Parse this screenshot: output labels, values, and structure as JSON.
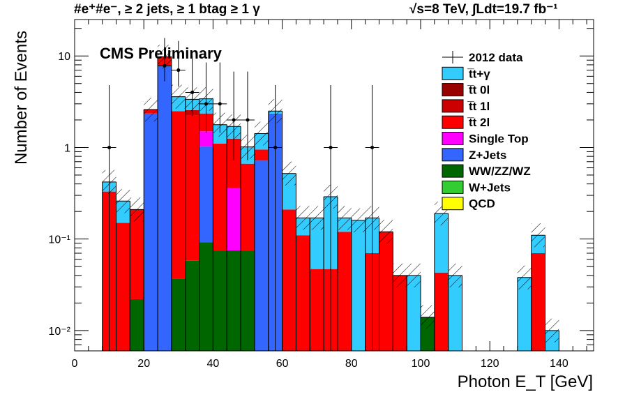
{
  "header": {
    "left": "#e⁺#e⁻, ≥ 2 jets, ≥ 1 btag ≥ 1 γ",
    "right": "√s=8 TeV,  ∫Ldt=19.7 fb⁻¹"
  },
  "chart_data": {
    "type": "bar",
    "stacked": true,
    "annotation": "CMS Preliminary",
    "xlabel": "Photon E_T [GeV]",
    "ylabel": "Number of Events",
    "xlim": [
      0,
      150
    ],
    "ylim": [
      0.006,
      25
    ],
    "yscale": "log",
    "x_ticks": [
      0,
      20,
      40,
      60,
      80,
      100,
      120,
      140
    ],
    "y_ticks": [
      {
        "value": 0.01,
        "label": "10⁻²"
      },
      {
        "value": 0.1,
        "label": "10⁻¹"
      },
      {
        "value": 1,
        "label": "1"
      },
      {
        "value": 10,
        "label": "10"
      }
    ],
    "legend_position": "top-right",
    "legend": [
      {
        "label": "2012 data",
        "style": "marker"
      },
      {
        "label": "t̅t+γ",
        "color": "#33ccff"
      },
      {
        "label": "t̅t 0l",
        "color": "#990000"
      },
      {
        "label": "t̅t 1l",
        "color": "#cc0000"
      },
      {
        "label": "t̅t 2l",
        "color": "#ff0000"
      },
      {
        "label": "Single Top",
        "color": "#ff00ff"
      },
      {
        "label": "Z+Jets",
        "color": "#3366ff"
      },
      {
        "label": "WW/ZZ/WZ",
        "color": "#006600"
      },
      {
        "label": "W+Jets",
        "color": "#33cc33"
      },
      {
        "label": "QCD",
        "color": "#ffff00"
      }
    ],
    "bins": [
      {
        "x0": 8,
        "x1": 12,
        "stack": [
          {
            "c": "#ff0000",
            "v": 0.33
          },
          {
            "c": "#33ccff",
            "v": 0.09
          }
        ]
      },
      {
        "x0": 12,
        "x1": 16,
        "stack": [
          {
            "c": "#ff0000",
            "v": 0.15
          },
          {
            "c": "#33ccff",
            "v": 0.11
          }
        ]
      },
      {
        "x0": 16,
        "x1": 20,
        "stack": [
          {
            "c": "#006600",
            "v": 0.022
          },
          {
            "c": "#ff0000",
            "v": 0.188
          }
        ]
      },
      {
        "x0": 20,
        "x1": 24,
        "stack": [
          {
            "c": "#3366ff",
            "v": 2.35
          },
          {
            "c": "#ff0000",
            "v": 0.25
          }
        ]
      },
      {
        "x0": 24,
        "x1": 28,
        "stack": [
          {
            "c": "#3366ff",
            "v": 7.8
          },
          {
            "c": "#ff0000",
            "v": 1.5
          },
          {
            "c": "#cc0000",
            "v": 0.5
          }
        ]
      },
      {
        "x0": 28,
        "x1": 32,
        "stack": [
          {
            "c": "#006600",
            "v": 0.037
          },
          {
            "c": "#ff0000",
            "v": 2.45
          },
          {
            "c": "#33ccff",
            "v": 1.1
          }
        ]
      },
      {
        "x0": 32,
        "x1": 36,
        "stack": [
          {
            "c": "#006600",
            "v": 0.058
          },
          {
            "c": "#ff0000",
            "v": 2.2
          },
          {
            "c": "#cc0000",
            "v": 0.3
          },
          {
            "c": "#33ccff",
            "v": 0.8
          }
        ]
      },
      {
        "x0": 36,
        "x1": 40,
        "stack": [
          {
            "c": "#006600",
            "v": 0.092
          },
          {
            "c": "#3366ff",
            "v": 0.93
          },
          {
            "c": "#ff00ff",
            "v": 0.48
          },
          {
            "c": "#ff0000",
            "v": 0.85
          },
          {
            "c": "#33ccff",
            "v": 1.05
          }
        ]
      },
      {
        "x0": 40,
        "x1": 44,
        "stack": [
          {
            "c": "#006600",
            "v": 0.075
          },
          {
            "c": "#ff0000",
            "v": 1.03
          },
          {
            "c": "#33ccff",
            "v": 0.67
          }
        ]
      },
      {
        "x0": 44,
        "x1": 48,
        "stack": [
          {
            "c": "#006600",
            "v": 0.075
          },
          {
            "c": "#ff00ff",
            "v": 0.285
          },
          {
            "c": "#ff0000",
            "v": 0.89
          },
          {
            "c": "#33ccff",
            "v": 0.45
          }
        ]
      },
      {
        "x0": 48,
        "x1": 52,
        "stack": [
          {
            "c": "#006600",
            "v": 0.075
          },
          {
            "c": "#ff0000",
            "v": 0.59
          },
          {
            "c": "#33ccff",
            "v": 0.35
          }
        ]
      },
      {
        "x0": 52,
        "x1": 56,
        "stack": [
          {
            "c": "#3366ff",
            "v": 0.72
          },
          {
            "c": "#ff0000",
            "v": 0.23
          },
          {
            "c": "#33ccff",
            "v": 0.47
          }
        ]
      },
      {
        "x0": 56,
        "x1": 60,
        "stack": [
          {
            "c": "#3366ff",
            "v": 2.35
          },
          {
            "c": "#33ccff",
            "v": 0.15
          }
        ]
      },
      {
        "x0": 60,
        "x1": 64,
        "stack": [
          {
            "c": "#ff0000",
            "v": 0.21
          },
          {
            "c": "#33ccff",
            "v": 0.31
          }
        ]
      },
      {
        "x0": 64,
        "x1": 68,
        "stack": [
          {
            "c": "#ff0000",
            "v": 0.11
          },
          {
            "c": "#33ccff",
            "v": 0.06
          }
        ]
      },
      {
        "x0": 68,
        "x1": 72,
        "stack": [
          {
            "c": "#ff0000",
            "v": 0.047
          },
          {
            "c": "#33ccff",
            "v": 0.123
          }
        ]
      },
      {
        "x0": 72,
        "x1": 76,
        "stack": [
          {
            "c": "#ff0000",
            "v": 0.047
          },
          {
            "c": "#33ccff",
            "v": 0.243
          }
        ]
      },
      {
        "x0": 76,
        "x1": 80,
        "stack": [
          {
            "c": "#ff0000",
            "v": 0.12
          },
          {
            "c": "#33ccff",
            "v": 0.05
          }
        ]
      },
      {
        "x0": 80,
        "x1": 84,
        "stack": [
          {
            "c": "#33ccff",
            "v": 0.16
          }
        ]
      },
      {
        "x0": 84,
        "x1": 88,
        "stack": [
          {
            "c": "#ff0000",
            "v": 0.07
          },
          {
            "c": "#33ccff",
            "v": 0.1
          }
        ]
      },
      {
        "x0": 88,
        "x1": 92,
        "stack": [
          {
            "c": "#ff0000",
            "v": 0.12
          }
        ]
      },
      {
        "x0": 92,
        "x1": 96,
        "stack": [
          {
            "c": "#ff0000",
            "v": 0.04
          }
        ]
      },
      {
        "x0": 96,
        "x1": 100,
        "stack": [
          {
            "c": "#33ccff",
            "v": 0.04
          }
        ]
      },
      {
        "x0": 100,
        "x1": 104,
        "stack": [
          {
            "c": "#006600",
            "v": 0.014
          }
        ]
      },
      {
        "x0": 104,
        "x1": 108,
        "stack": [
          {
            "c": "#ff0000",
            "v": 0.043
          },
          {
            "c": "#33ccff",
            "v": 0.147
          }
        ]
      },
      {
        "x0": 108,
        "x1": 112,
        "stack": [
          {
            "c": "#33ccff",
            "v": 0.04
          }
        ]
      },
      {
        "x0": 128,
        "x1": 132,
        "stack": [
          {
            "c": "#33ccff",
            "v": 0.038
          }
        ]
      },
      {
        "x0": 132,
        "x1": 136,
        "stack": [
          {
            "c": "#ff0000",
            "v": 0.07
          },
          {
            "c": "#33ccff",
            "v": 0.04
          }
        ]
      },
      {
        "x0": 136,
        "x1": 140,
        "stack": [
          {
            "c": "#33ccff",
            "v": 0.01
          }
        ]
      }
    ],
    "data_points": [
      {
        "x": 10,
        "y": 1
      },
      {
        "x": 26,
        "y": 7.8
      },
      {
        "x": 30,
        "y": 7
      },
      {
        "x": 34,
        "y": 4
      },
      {
        "x": 38,
        "y": 3
      },
      {
        "x": 42,
        "y": 3
      },
      {
        "x": 46,
        "y": 2
      },
      {
        "x": 50,
        "y": 2
      },
      {
        "x": 58,
        "y": 1
      },
      {
        "x": 74,
        "y": 1
      },
      {
        "x": 86,
        "y": 1
      }
    ]
  }
}
